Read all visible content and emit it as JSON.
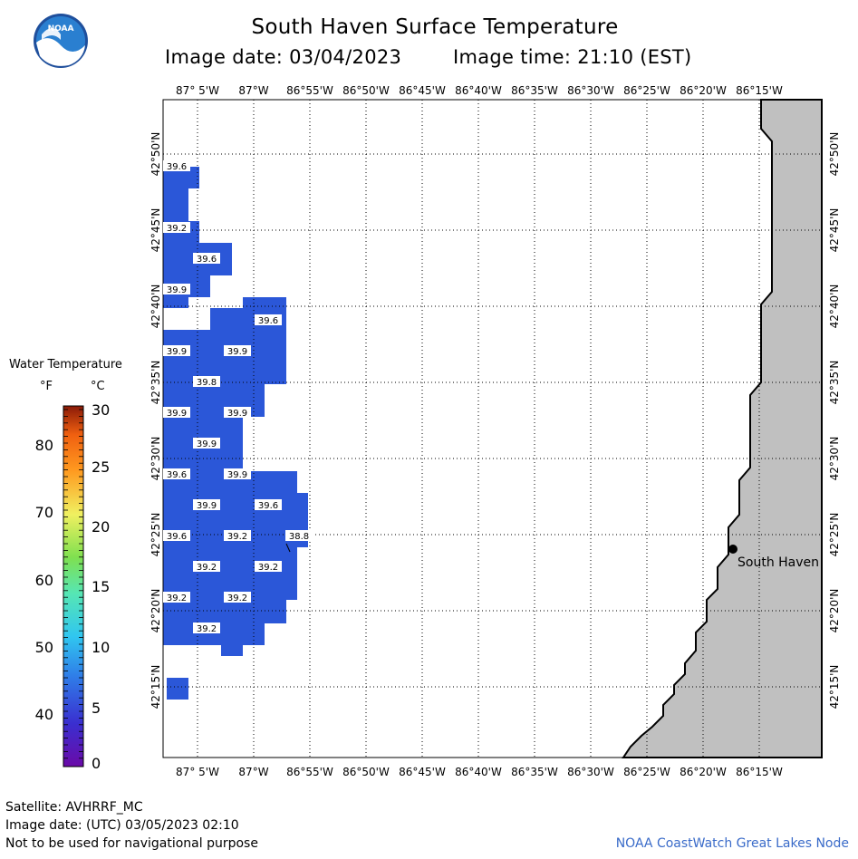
{
  "header": {
    "title": "South Haven Surface Temperature",
    "image_date_label": "Image date: 03/04/2023",
    "image_time_label": "Image time: 21:10 (EST)"
  },
  "logo": {
    "text": "NOAA",
    "icon": "noaa-logo-icon"
  },
  "map": {
    "lon_labels": [
      "87° 5'W",
      "87°W",
      "86°55'W",
      "86°50'W",
      "86°45'W",
      "86°40'W",
      "86°35'W",
      "86°30'W",
      "86°25'W",
      "86°20'W",
      "86°15'W"
    ],
    "lat_labels": [
      "42°50'N",
      "42°45'N",
      "42°40'N",
      "42°35'N",
      "42°30'N",
      "42°25'N",
      "42°20'N",
      "42°15'N"
    ],
    "city": {
      "name": "South Haven"
    },
    "water_color": "#2b57d8",
    "land_color": "#c0c0c0",
    "temperature_labels_F": [
      "39.6",
      "39.2",
      "39.6",
      "39.9",
      "39.6",
      "39.9",
      "39.9",
      "39.8",
      "39.9",
      "39.9",
      "39.9",
      "39.6",
      "39.9",
      "39.9",
      "39.6",
      "39.6",
      "39.2",
      "38.8",
      "39.2",
      "39.2",
      "39.2",
      "39.2",
      "39.2"
    ]
  },
  "legend": {
    "title": "Water Temperature",
    "unit_f": "°F",
    "unit_c": "°C",
    "f_ticks": [
      "80",
      "70",
      "60",
      "50",
      "40"
    ],
    "c_ticks": [
      "30",
      "25",
      "20",
      "15",
      "10",
      "5",
      "0"
    ]
  },
  "footer": {
    "satellite": "Satellite: AVHRRF_MC",
    "utc_date": "Image date: (UTC) 03/05/2023  02:10",
    "warning": "Not to be used for navigational purpose",
    "credit": "NOAA CoastWatch Great Lakes Node"
  }
}
